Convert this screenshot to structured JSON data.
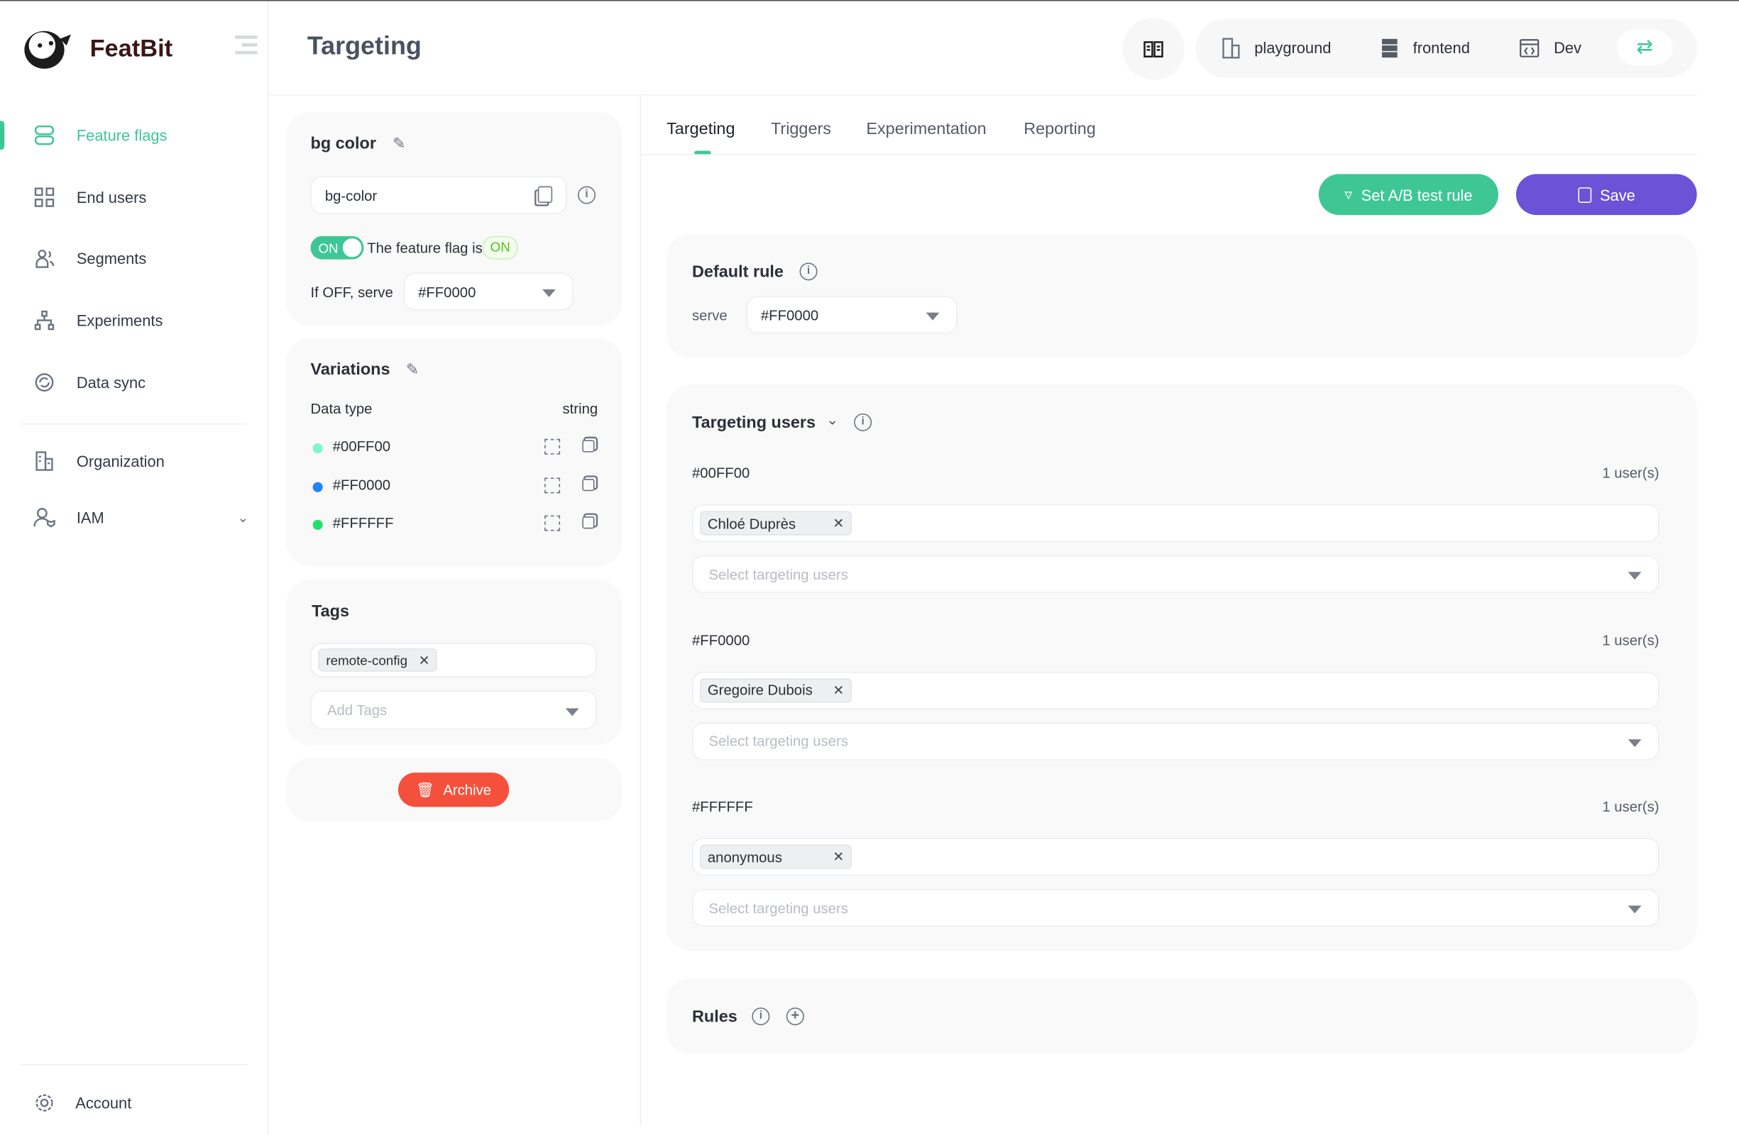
{
  "brand": {
    "name": "FeatBit"
  },
  "sidebar": {
    "items": [
      {
        "label": "Feature flags",
        "icon": "toggle-icon",
        "active": true
      },
      {
        "label": "End users",
        "icon": "grid-icon"
      },
      {
        "label": "Segments",
        "icon": "users-icon"
      },
      {
        "label": "Experiments",
        "icon": "sitemap-icon"
      },
      {
        "label": "Data sync",
        "icon": "sync-icon"
      },
      {
        "label": "Organization",
        "icon": "building-icon"
      },
      {
        "label": "IAM",
        "icon": "user-shield-icon"
      }
    ],
    "account": "Account"
  },
  "header": {
    "title": "Targeting",
    "org": "playground",
    "project": "frontend",
    "env": "Dev"
  },
  "flag": {
    "name": "bg color",
    "key": "bg-color",
    "toggle": "ON",
    "status_text": "The feature flag is",
    "status": "ON",
    "off_label": "If OFF, serve",
    "off_value": "#FF0000"
  },
  "variations": {
    "title": "Variations",
    "data_type_label": "Data type",
    "data_type": "string",
    "items": [
      {
        "value": "#00FF00",
        "color": "#7ff5d0"
      },
      {
        "value": "#FF0000",
        "color": "#1e84ff"
      },
      {
        "value": "#FFFFFF",
        "color": "#22e06f"
      }
    ]
  },
  "tags": {
    "title": "Tags",
    "items": [
      "remote-config"
    ],
    "placeholder": "Add Tags"
  },
  "archive": "Archive",
  "tabs": [
    "Targeting",
    "Triggers",
    "Experimentation",
    "Reporting"
  ],
  "actions": {
    "ab": "Set A/B test rule",
    "save": "Save"
  },
  "default_rule": {
    "title": "Default rule",
    "serve": "serve",
    "value": "#FF0000"
  },
  "targeting": {
    "title": "Targeting users",
    "placeholder": "Select targeting users",
    "groups": [
      {
        "variation": "#00FF00",
        "count": "1 user(s)",
        "users": [
          "Chloé Duprès"
        ]
      },
      {
        "variation": "#FF0000",
        "count": "1 user(s)",
        "users": [
          "Gregoire Dubois"
        ]
      },
      {
        "variation": "#FFFFFF",
        "count": "1 user(s)",
        "users": [
          "anonymous"
        ]
      }
    ]
  },
  "rules": {
    "title": "Rules"
  },
  "colors": {
    "primary": "#3ec795",
    "save": "#6a53d6",
    "archive": "#f5503c"
  }
}
